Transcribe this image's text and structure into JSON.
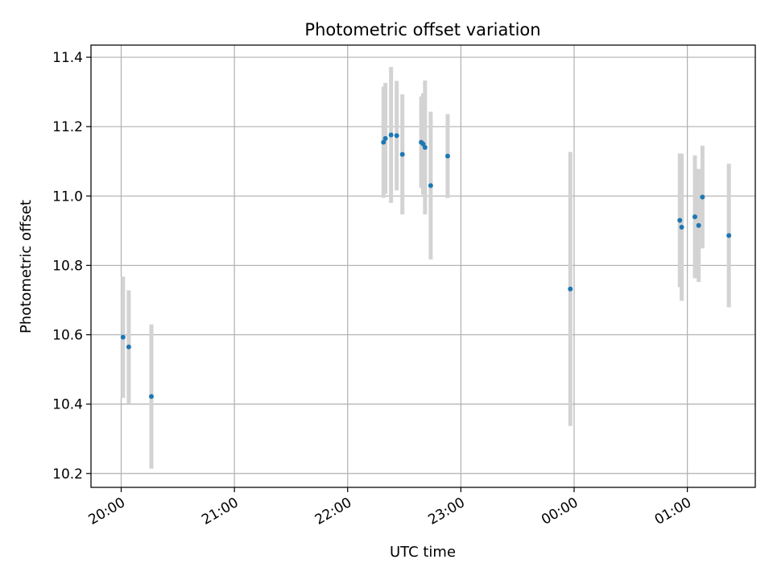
{
  "chart_data": {
    "type": "scatter",
    "title": "Photometric offset variation",
    "xlabel": "UTC time",
    "ylabel": "Photometric offset",
    "xlim": [
      "19:44",
      "25:36"
    ],
    "ylim": [
      10.16,
      11.435
    ],
    "x_ticks": [
      {
        "value": "20:00",
        "label": "20:00"
      },
      {
        "value": "21:00",
        "label": "21:00"
      },
      {
        "value": "22:00",
        "label": "22:00"
      },
      {
        "value": "23:00",
        "label": "23:00"
      },
      {
        "value": "24:00",
        "label": "00:00"
      },
      {
        "value": "25:00",
        "label": "01:00"
      }
    ],
    "y_ticks": [
      10.2,
      10.4,
      10.6,
      10.8,
      11.0,
      11.2,
      11.4
    ],
    "grid": true,
    "marker_color": "#1f77b4",
    "errorbar_color": "#d3d3d3",
    "series": [
      {
        "points": [
          {
            "x": "20:01",
            "y": 10.593,
            "err": 0.175
          },
          {
            "x": "20:04",
            "y": 10.565,
            "err": 0.163
          },
          {
            "x": "20:16",
            "y": 10.422,
            "err": 0.208
          },
          {
            "x": "22:19",
            "y": 11.155,
            "err": 0.16
          },
          {
            "x": "22:20",
            "y": 11.166,
            "err": 0.16
          },
          {
            "x": "22:23",
            "y": 11.176,
            "err": 0.196
          },
          {
            "x": "22:26",
            "y": 11.174,
            "err": 0.158
          },
          {
            "x": "22:29",
            "y": 11.12,
            "err": 0.173
          },
          {
            "x": "22:39",
            "y": 11.155,
            "err": 0.132
          },
          {
            "x": "22:40",
            "y": 11.15,
            "err": 0.146
          },
          {
            "x": "22:41",
            "y": 11.14,
            "err": 0.193
          },
          {
            "x": "22:44",
            "y": 11.03,
            "err": 0.213
          },
          {
            "x": "22:53",
            "y": 11.115,
            "err": 0.121
          },
          {
            "x": "23:58",
            "y": 10.732,
            "err": 0.395
          },
          {
            "x": "24:56",
            "y": 10.93,
            "err": 0.193
          },
          {
            "x": "24:57",
            "y": 10.91,
            "err": 0.212
          },
          {
            "x": "25:04",
            "y": 10.94,
            "err": 0.177
          },
          {
            "x": "25:06",
            "y": 10.915,
            "err": 0.163
          },
          {
            "x": "25:08",
            "y": 10.997,
            "err": 0.148
          },
          {
            "x": "25:22",
            "y": 10.886,
            "err": 0.207
          }
        ]
      }
    ]
  }
}
